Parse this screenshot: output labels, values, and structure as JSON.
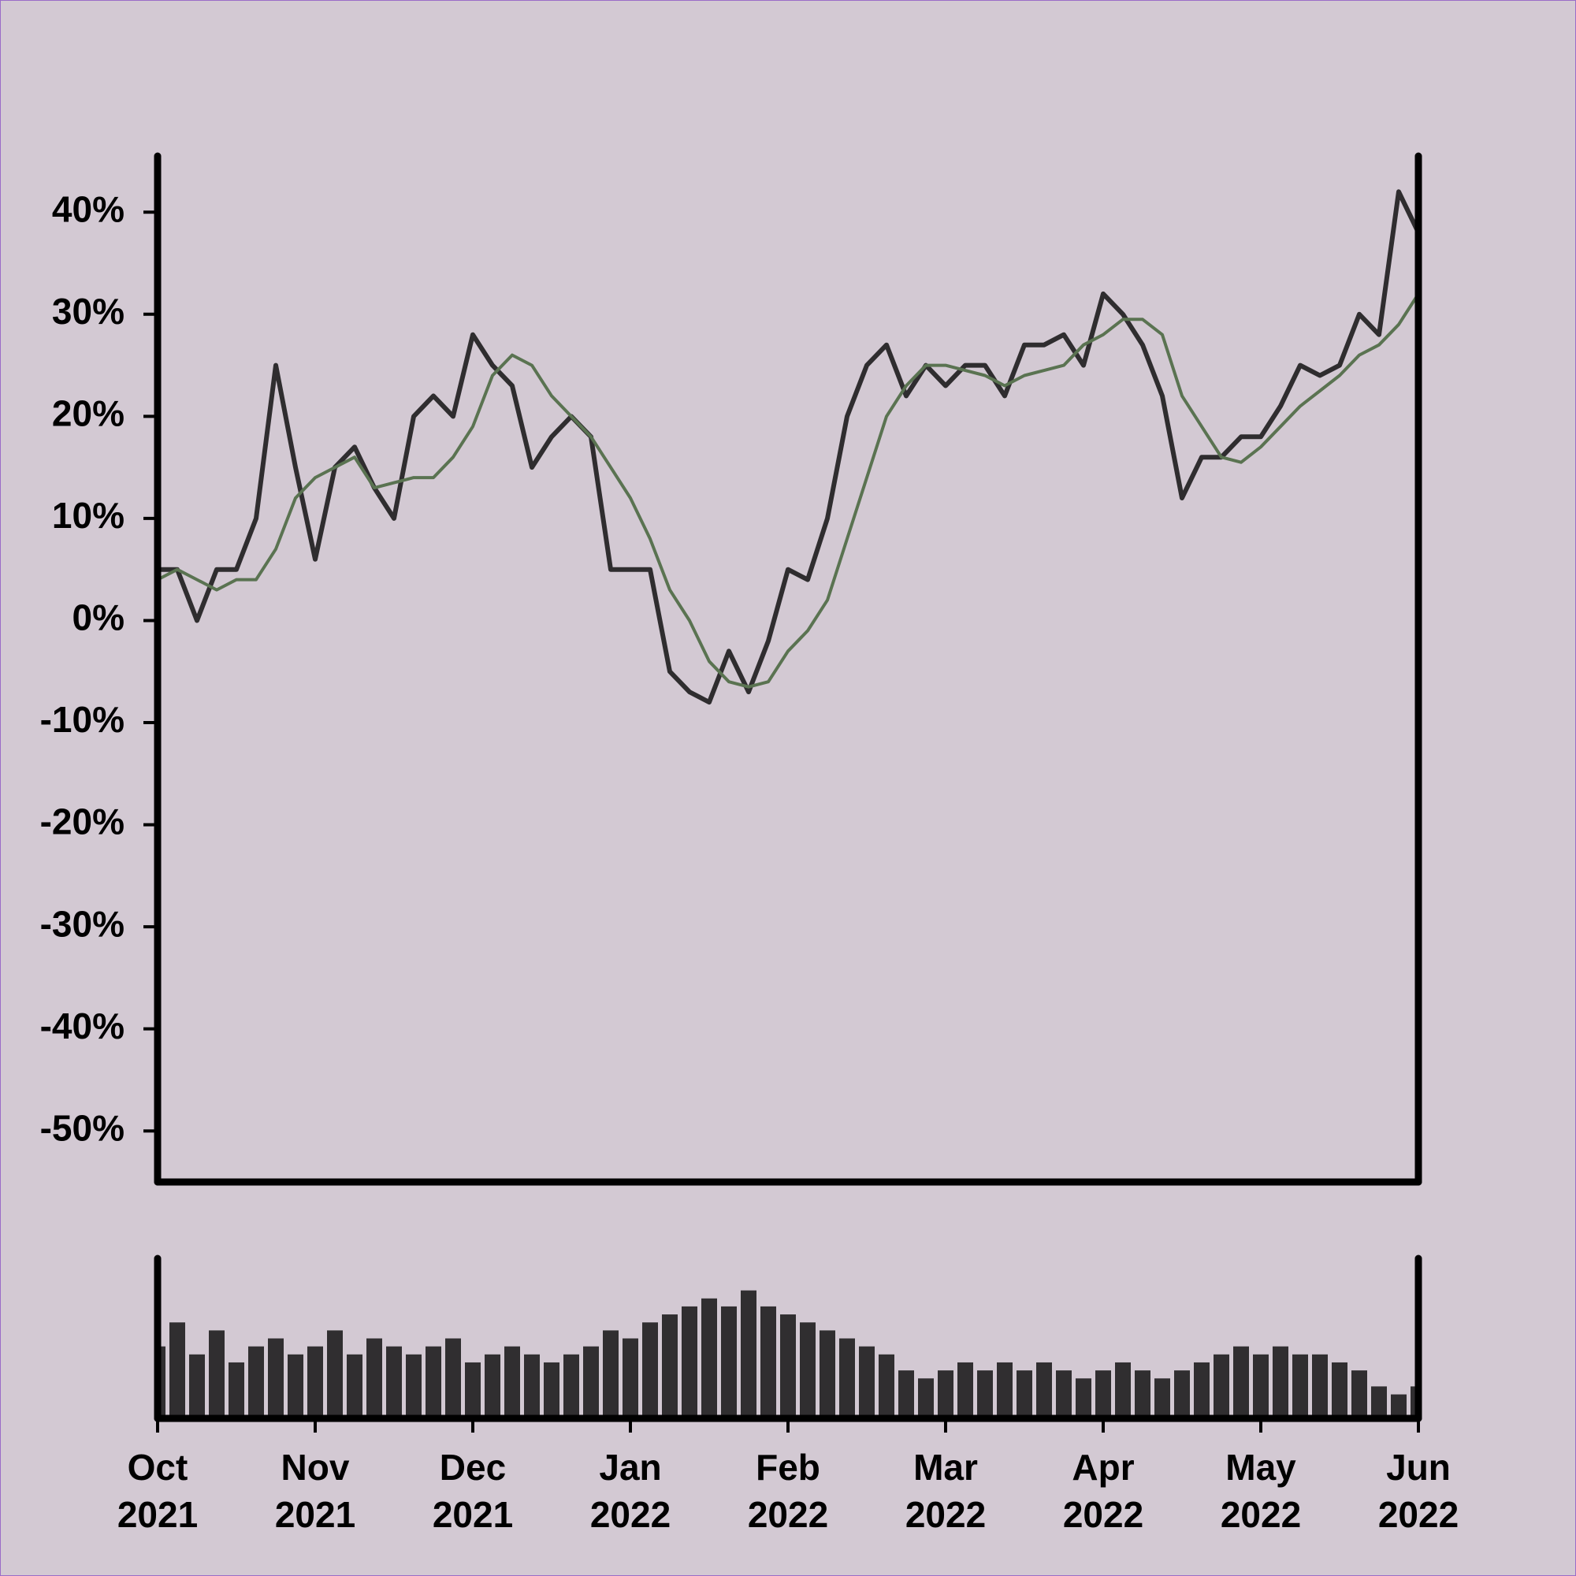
{
  "chart_data": {
    "type": "line",
    "x": [
      0,
      0.125,
      0.25,
      0.375,
      0.5,
      0.625,
      0.75,
      0.875,
      1,
      1.125,
      1.25,
      1.375,
      1.5,
      1.625,
      1.75,
      1.875,
      2,
      2.125,
      2.25,
      2.375,
      2.5,
      2.625,
      2.75,
      2.875,
      3,
      3.125,
      3.25,
      3.375,
      3.5,
      3.625,
      3.75,
      3.875,
      4,
      4.125,
      4.25,
      4.375,
      4.5,
      4.625,
      4.75,
      4.875,
      5,
      5.125,
      5.25,
      5.375,
      5.5,
      5.625,
      5.75,
      5.875,
      6,
      6.125,
      6.25,
      6.375,
      6.5,
      6.625,
      6.75,
      6.875,
      7,
      7.125,
      7.25,
      7.375,
      7.5,
      7.625,
      7.75,
      7.875,
      8
    ],
    "xlim": [
      0,
      8
    ],
    "xticks": [
      {
        "value": 0,
        "label": "Oct 2021"
      },
      {
        "value": 1,
        "label": "Nov 2021"
      },
      {
        "value": 2,
        "label": "Dec 2021"
      },
      {
        "value": 3,
        "label": "Jan 2022"
      },
      {
        "value": 4,
        "label": "Feb 2022"
      },
      {
        "value": 5,
        "label": "Mar 2022"
      },
      {
        "value": 6,
        "label": "Apr 2022"
      },
      {
        "value": 7,
        "label": "May 2022"
      },
      {
        "value": 8,
        "label": "Jun 2022"
      }
    ],
    "ylim": [
      -55,
      45.5
    ],
    "yticks": [
      {
        "value": -50,
        "label": "-50%"
      },
      {
        "value": -40,
        "label": "-40%"
      },
      {
        "value": -30,
        "label": "-30%"
      },
      {
        "value": -20,
        "label": "-20%"
      },
      {
        "value": -10,
        "label": "-10%"
      },
      {
        "value": 0,
        "label": "0%"
      },
      {
        "value": 10,
        "label": "10%"
      },
      {
        "value": 20,
        "label": "20%"
      },
      {
        "value": 30,
        "label": "30%"
      },
      {
        "value": 40,
        "label": "40%"
      }
    ],
    "series": [
      {
        "color": "#2f2d2f",
        "values": [
          5,
          5,
          0,
          5,
          5,
          10,
          25,
          15,
          6,
          15,
          17,
          13,
          10,
          20,
          22,
          20,
          28,
          25,
          23,
          15,
          18,
          20,
          18,
          5,
          5,
          5,
          -5,
          -7,
          -8,
          -3,
          -7,
          -2,
          5,
          4,
          10,
          20,
          25,
          27,
          22,
          25,
          23,
          25,
          25,
          22,
          27,
          27,
          28,
          25,
          32,
          30,
          27,
          22,
          12,
          16,
          16,
          18,
          18,
          21,
          25,
          24,
          25,
          30,
          28,
          42,
          38
        ]
      },
      {
        "color": "#5a7351",
        "values": [
          4,
          5,
          4,
          3,
          4,
          4,
          7,
          12,
          14,
          15,
          16,
          13,
          13.5,
          14,
          14,
          16,
          19,
          24,
          26,
          25,
          22,
          20,
          18,
          15,
          12,
          8,
          3,
          0,
          -4,
          -6,
          -6.5,
          -6,
          -3,
          -1,
          2,
          8,
          14,
          20,
          23,
          25,
          25,
          24.5,
          24,
          23,
          24,
          24.5,
          25,
          27,
          28,
          29.5,
          29.5,
          28,
          22,
          19,
          16,
          15.5,
          17,
          19,
          21,
          22.5,
          24,
          26,
          27,
          29,
          32
        ]
      }
    ],
    "volume": {
      "color": "#302e30",
      "ylim": [
        0,
        100
      ],
      "values": [
        45,
        60,
        40,
        55,
        35,
        45,
        50,
        40,
        45,
        55,
        40,
        50,
        45,
        40,
        45,
        50,
        35,
        40,
        45,
        40,
        35,
        40,
        45,
        55,
        50,
        60,
        65,
        70,
        75,
        70,
        80,
        70,
        65,
        60,
        55,
        50,
        45,
        40,
        30,
        25,
        30,
        35,
        30,
        35,
        30,
        35,
        30,
        25,
        30,
        35,
        30,
        25,
        30,
        35,
        40,
        45,
        40,
        45,
        40,
        40,
        35,
        30,
        20,
        15,
        20
      ]
    }
  }
}
